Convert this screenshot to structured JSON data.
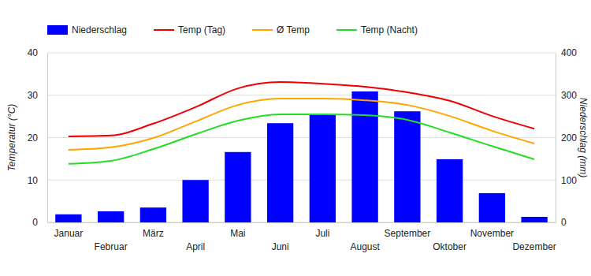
{
  "chart_data": {
    "type": "bar",
    "categories": [
      "Januar",
      "Februar",
      "März",
      "April",
      "Mai",
      "Juni",
      "Juli",
      "August",
      "September",
      "Oktober",
      "November",
      "Dezember"
    ],
    "y_label": "Temperatur (°C)",
    "y2_label": "Niederschlag (mm)",
    "ylim": [
      0,
      40
    ],
    "yticks": [
      0,
      10,
      20,
      30,
      40
    ],
    "y2lim": [
      0,
      400
    ],
    "y2ticks": [
      0,
      100,
      200,
      300,
      400
    ],
    "grid": true,
    "legend": "top-left",
    "series": [
      {
        "name": "Niederschlag",
        "type": "bar",
        "axis": "y2",
        "color": "#0000ff",
        "values": [
          19,
          26,
          35,
          100,
          166,
          234,
          255,
          309,
          262,
          149,
          69,
          13
        ]
      },
      {
        "name": "Temp (Tag)",
        "type": "line",
        "axis": "y",
        "color": "#ee0000",
        "marker": "none",
        "line_style": "solid",
        "values": [
          20.3,
          20.5,
          23.3,
          27.2,
          31.6,
          33.1,
          32.7,
          32.0,
          30.7,
          28.7,
          25.1,
          22.1
        ]
      },
      {
        "name": "Ø Temp",
        "type": "line",
        "axis": "y",
        "color": "#ffa500",
        "marker": "none",
        "line_style": "solid",
        "values": [
          17.1,
          17.7,
          19.9,
          23.8,
          27.7,
          29.2,
          29.2,
          28.8,
          27.7,
          25.1,
          21.6,
          18.6
        ]
      },
      {
        "name": "Temp (Nacht)",
        "type": "line",
        "axis": "y",
        "color": "#22dd22",
        "marker": "none",
        "line_style": "solid",
        "values": [
          13.8,
          14.5,
          17.3,
          20.8,
          24.0,
          25.5,
          25.5,
          25.3,
          24.2,
          21.2,
          18.0,
          14.9
        ]
      }
    ]
  }
}
